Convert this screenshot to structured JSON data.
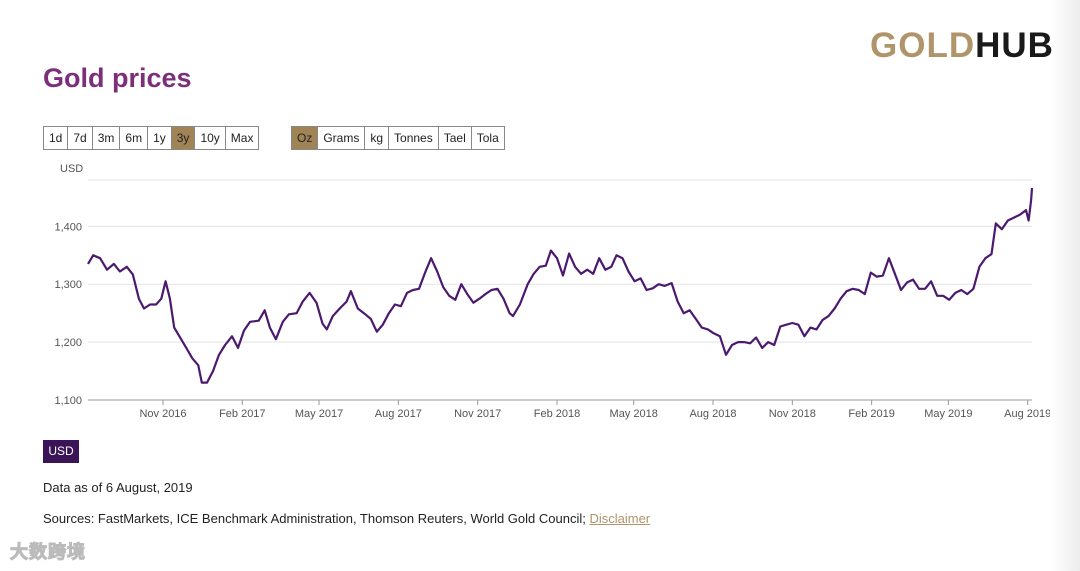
{
  "logo": {
    "gold": "GOLD",
    "hub": "HUB"
  },
  "page_title": "Gold prices",
  "range_buttons": [
    {
      "label": "1d",
      "active": false
    },
    {
      "label": "7d",
      "active": false
    },
    {
      "label": "3m",
      "active": false
    },
    {
      "label": "6m",
      "active": false
    },
    {
      "label": "1y",
      "active": false
    },
    {
      "label": "3y",
      "active": true
    },
    {
      "label": "10y",
      "active": false
    },
    {
      "label": "Max",
      "active": false
    }
  ],
  "unit_buttons": [
    {
      "label": "Oz",
      "active": true
    },
    {
      "label": "Grams",
      "active": false
    },
    {
      "label": "kg",
      "active": false
    },
    {
      "label": "Tonnes",
      "active": false
    },
    {
      "label": "Tael",
      "active": false
    },
    {
      "label": "Tola",
      "active": false
    }
  ],
  "chart_data": {
    "type": "line",
    "ylabel": "USD",
    "ylim": [
      1100,
      1480
    ],
    "yticks": [
      1100,
      1200,
      1300,
      1400
    ],
    "ytick_labels": [
      "1,100",
      "1,200",
      "1,300",
      "1,400"
    ],
    "xlim": [
      "2016-08-06",
      "2019-08-06"
    ],
    "xticks": [
      "2016-11-01",
      "2017-02-01",
      "2017-05-01",
      "2017-08-01",
      "2017-11-01",
      "2018-02-01",
      "2018-05-01",
      "2018-08-01",
      "2018-11-01",
      "2019-02-01",
      "2019-05-01",
      "2019-08-01"
    ],
    "xtick_labels": [
      "Nov 2016",
      "Feb 2017",
      "May 2017",
      "Aug 2017",
      "Nov 2017",
      "Feb 2018",
      "May 2018",
      "Aug 2018",
      "Nov 2018",
      "Feb 2019",
      "May 2019",
      "Aug 2019"
    ],
    "grid": true,
    "series": [
      {
        "color": "#4b1a6e",
        "points": [
          [
            "2016-08-06",
            1335
          ],
          [
            "2016-08-12",
            1350
          ],
          [
            "2016-08-20",
            1345
          ],
          [
            "2016-08-28",
            1325
          ],
          [
            "2016-09-05",
            1335
          ],
          [
            "2016-09-12",
            1322
          ],
          [
            "2016-09-20",
            1330
          ],
          [
            "2016-09-27",
            1317
          ],
          [
            "2016-10-04",
            1275
          ],
          [
            "2016-10-10",
            1258
          ],
          [
            "2016-10-17",
            1265
          ],
          [
            "2016-10-24",
            1265
          ],
          [
            "2016-10-30",
            1275
          ],
          [
            "2016-11-04",
            1305
          ],
          [
            "2016-11-09",
            1275
          ],
          [
            "2016-11-14",
            1225
          ],
          [
            "2016-11-20",
            1210
          ],
          [
            "2016-11-28",
            1190
          ],
          [
            "2016-12-05",
            1172
          ],
          [
            "2016-12-12",
            1160
          ],
          [
            "2016-12-16",
            1130
          ],
          [
            "2016-12-22",
            1130
          ],
          [
            "2016-12-29",
            1150
          ],
          [
            "2017-01-05",
            1178
          ],
          [
            "2017-01-12",
            1195
          ],
          [
            "2017-01-20",
            1210
          ],
          [
            "2017-01-27",
            1190
          ],
          [
            "2017-02-03",
            1220
          ],
          [
            "2017-02-10",
            1235
          ],
          [
            "2017-02-20",
            1237
          ],
          [
            "2017-02-27",
            1255
          ],
          [
            "2017-03-05",
            1225
          ],
          [
            "2017-03-12",
            1205
          ],
          [
            "2017-03-20",
            1235
          ],
          [
            "2017-03-27",
            1248
          ],
          [
            "2017-04-05",
            1250
          ],
          [
            "2017-04-12",
            1270
          ],
          [
            "2017-04-20",
            1285
          ],
          [
            "2017-04-28",
            1268
          ],
          [
            "2017-05-05",
            1232
          ],
          [
            "2017-05-10",
            1222
          ],
          [
            "2017-05-17",
            1245
          ],
          [
            "2017-05-25",
            1258
          ],
          [
            "2017-06-02",
            1270
          ],
          [
            "2017-06-07",
            1288
          ],
          [
            "2017-06-15",
            1258
          ],
          [
            "2017-06-22",
            1250
          ],
          [
            "2017-06-30",
            1240
          ],
          [
            "2017-07-07",
            1218
          ],
          [
            "2017-07-14",
            1230
          ],
          [
            "2017-07-21",
            1250
          ],
          [
            "2017-07-28",
            1265
          ],
          [
            "2017-08-04",
            1262
          ],
          [
            "2017-08-11",
            1285
          ],
          [
            "2017-08-18",
            1290
          ],
          [
            "2017-08-25",
            1292
          ],
          [
            "2017-09-01",
            1320
          ],
          [
            "2017-09-08",
            1345
          ],
          [
            "2017-09-15",
            1322
          ],
          [
            "2017-09-22",
            1295
          ],
          [
            "2017-09-29",
            1280
          ],
          [
            "2017-10-06",
            1273
          ],
          [
            "2017-10-13",
            1300
          ],
          [
            "2017-10-20",
            1283
          ],
          [
            "2017-10-27",
            1268
          ],
          [
            "2017-11-03",
            1275
          ],
          [
            "2017-11-10",
            1283
          ],
          [
            "2017-11-17",
            1290
          ],
          [
            "2017-11-24",
            1292
          ],
          [
            "2017-12-01",
            1275
          ],
          [
            "2017-12-08",
            1250
          ],
          [
            "2017-12-12",
            1245
          ],
          [
            "2017-12-20",
            1265
          ],
          [
            "2017-12-29",
            1300
          ],
          [
            "2018-01-05",
            1318
          ],
          [
            "2018-01-12",
            1330
          ],
          [
            "2018-01-19",
            1332
          ],
          [
            "2018-01-25",
            1358
          ],
          [
            "2018-02-01",
            1345
          ],
          [
            "2018-02-08",
            1315
          ],
          [
            "2018-02-15",
            1353
          ],
          [
            "2018-02-22",
            1330
          ],
          [
            "2018-03-01",
            1318
          ],
          [
            "2018-03-08",
            1325
          ],
          [
            "2018-03-15",
            1318
          ],
          [
            "2018-03-22",
            1345
          ],
          [
            "2018-03-29",
            1325
          ],
          [
            "2018-04-05",
            1330
          ],
          [
            "2018-04-11",
            1350
          ],
          [
            "2018-04-18",
            1345
          ],
          [
            "2018-04-25",
            1322
          ],
          [
            "2018-05-02",
            1305
          ],
          [
            "2018-05-09",
            1310
          ],
          [
            "2018-05-16",
            1290
          ],
          [
            "2018-05-23",
            1293
          ],
          [
            "2018-05-30",
            1300
          ],
          [
            "2018-06-06",
            1297
          ],
          [
            "2018-06-14",
            1302
          ],
          [
            "2018-06-21",
            1270
          ],
          [
            "2018-06-28",
            1250
          ],
          [
            "2018-07-05",
            1255
          ],
          [
            "2018-07-12",
            1240
          ],
          [
            "2018-07-19",
            1225
          ],
          [
            "2018-07-26",
            1222
          ],
          [
            "2018-08-02",
            1215
          ],
          [
            "2018-08-09",
            1210
          ],
          [
            "2018-08-16",
            1178
          ],
          [
            "2018-08-23",
            1195
          ],
          [
            "2018-08-30",
            1200
          ],
          [
            "2018-09-06",
            1200
          ],
          [
            "2018-09-13",
            1198
          ],
          [
            "2018-09-20",
            1208
          ],
          [
            "2018-09-27",
            1190
          ],
          [
            "2018-10-04",
            1200
          ],
          [
            "2018-10-11",
            1195
          ],
          [
            "2018-10-18",
            1227
          ],
          [
            "2018-10-25",
            1230
          ],
          [
            "2018-11-01",
            1233
          ],
          [
            "2018-11-08",
            1230
          ],
          [
            "2018-11-15",
            1210
          ],
          [
            "2018-11-22",
            1225
          ],
          [
            "2018-11-29",
            1222
          ],
          [
            "2018-12-06",
            1238
          ],
          [
            "2018-12-13",
            1245
          ],
          [
            "2018-12-20",
            1258
          ],
          [
            "2018-12-27",
            1275
          ],
          [
            "2019-01-03",
            1288
          ],
          [
            "2019-01-10",
            1292
          ],
          [
            "2019-01-17",
            1290
          ],
          [
            "2019-01-24",
            1283
          ],
          [
            "2019-01-31",
            1320
          ],
          [
            "2019-02-07",
            1313
          ],
          [
            "2019-02-14",
            1315
          ],
          [
            "2019-02-21",
            1345
          ],
          [
            "2019-02-28",
            1318
          ],
          [
            "2019-03-07",
            1290
          ],
          [
            "2019-03-14",
            1303
          ],
          [
            "2019-03-21",
            1308
          ],
          [
            "2019-03-28",
            1292
          ],
          [
            "2019-04-04",
            1292
          ],
          [
            "2019-04-11",
            1305
          ],
          [
            "2019-04-18",
            1280
          ],
          [
            "2019-04-25",
            1280
          ],
          [
            "2019-05-02",
            1273
          ],
          [
            "2019-05-09",
            1285
          ],
          [
            "2019-05-16",
            1290
          ],
          [
            "2019-05-23",
            1283
          ],
          [
            "2019-05-30",
            1292
          ],
          [
            "2019-06-06",
            1330
          ],
          [
            "2019-06-13",
            1345
          ],
          [
            "2019-06-20",
            1352
          ],
          [
            "2019-06-25",
            1405
          ],
          [
            "2019-07-02",
            1395
          ],
          [
            "2019-07-09",
            1410
          ],
          [
            "2019-07-16",
            1415
          ],
          [
            "2019-07-23",
            1420
          ],
          [
            "2019-07-30",
            1428
          ],
          [
            "2019-08-02",
            1410
          ],
          [
            "2019-08-05",
            1445
          ],
          [
            "2019-08-06",
            1466
          ]
        ]
      }
    ]
  },
  "currency_badge": "USD",
  "data_as_of": "Data as of 6 August, 2019",
  "sources_text": "Sources: FastMarkets, ICE Benchmark Administration, Thomson Reuters, World Gold Council; ",
  "disclaimer_link": "Disclaimer",
  "watermark": "大数跨境"
}
